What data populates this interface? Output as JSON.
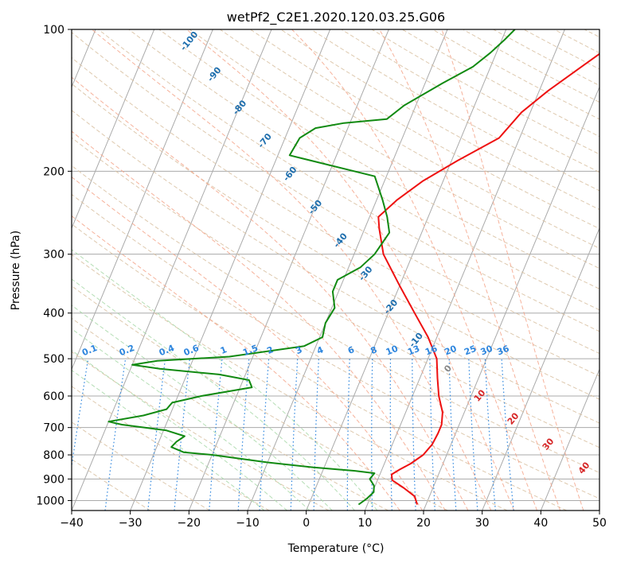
{
  "chart_data": {
    "type": "skew-t",
    "title": "wetPf2_C2E1.2020.120.03.25.G06",
    "xlabel": "Temperature (°C)",
    "ylabel": "Pressure (hPa)",
    "xlim": [
      -40,
      50
    ],
    "ylim": [
      1050,
      100
    ],
    "y_scale": "log",
    "x_ticks": [
      "−40",
      "−30",
      "−20",
      "−10",
      "0",
      "10",
      "20",
      "30",
      "40",
      "50"
    ],
    "y_ticks": [
      "100",
      "200",
      "300",
      "400",
      "500",
      "600",
      "700",
      "800",
      "900",
      "1000"
    ],
    "grid": true,
    "colors": {
      "temperature": "#ee1111",
      "dewpoint": "#118a11",
      "isotherm": "#aaaaaa",
      "dry_adiabat": "#d8bfa0",
      "moist_adiabat": "#f5a58a",
      "moist_adiabat_inner": "#a8d8a8",
      "mixing_ratio": "#2e86de",
      "dry_adiabat_label": "#1f6fae",
      "moist_label": "#d62728",
      "zero_label": "#888888"
    },
    "series": [
      {
        "role": "temperature",
        "points": [
          {
            "p": 1020,
            "t": 18.5
          },
          {
            "p": 980,
            "t": 17.5
          },
          {
            "p": 940,
            "t": 15.0
          },
          {
            "p": 905,
            "t": 12.5
          },
          {
            "p": 880,
            "t": 12.0
          },
          {
            "p": 860,
            "t": 13.0
          },
          {
            "p": 835,
            "t": 14.5
          },
          {
            "p": 800,
            "t": 16.0
          },
          {
            "p": 760,
            "t": 16.8
          },
          {
            "p": 720,
            "t": 17.0
          },
          {
            "p": 690,
            "t": 17.0
          },
          {
            "p": 650,
            "t": 16.3
          },
          {
            "p": 600,
            "t": 14.5
          },
          {
            "p": 550,
            "t": 13.0
          },
          {
            "p": 500,
            "t": 11.5
          },
          {
            "p": 450,
            "t": 8.5
          },
          {
            "p": 400,
            "t": 4.5
          },
          {
            "p": 350,
            "t": 0.0
          },
          {
            "p": 300,
            "t": -5.0
          },
          {
            "p": 265,
            "t": -7.5
          },
          {
            "p": 250,
            "t": -8.5
          },
          {
            "p": 230,
            "t": -6.5
          },
          {
            "p": 210,
            "t": -3.5
          },
          {
            "p": 190,
            "t": 1.0
          },
          {
            "p": 170,
            "t": 6.5
          },
          {
            "p": 150,
            "t": 8.5
          },
          {
            "p": 135,
            "t": 11.5
          },
          {
            "p": 120,
            "t": 15.5
          },
          {
            "p": 110,
            "t": 18.5
          },
          {
            "p": 100,
            "t": 20.5
          }
        ]
      },
      {
        "role": "dewpoint",
        "points": [
          {
            "p": 1020,
            "t": 8.5
          },
          {
            "p": 990,
            "t": 9.5
          },
          {
            "p": 960,
            "t": 10.2
          },
          {
            "p": 930,
            "t": 9.8
          },
          {
            "p": 900,
            "t": 8.6
          },
          {
            "p": 875,
            "t": 9.0
          },
          {
            "p": 865,
            "t": 5.5
          },
          {
            "p": 850,
            "t": -2.0
          },
          {
            "p": 830,
            "t": -10.0
          },
          {
            "p": 800,
            "t": -20.0
          },
          {
            "p": 790,
            "t": -25.0
          },
          {
            "p": 770,
            "t": -27.5
          },
          {
            "p": 750,
            "t": -27.0
          },
          {
            "p": 730,
            "t": -26.0
          },
          {
            "p": 710,
            "t": -29.5
          },
          {
            "p": 690,
            "t": -37.5
          },
          {
            "p": 680,
            "t": -40.0
          },
          {
            "p": 660,
            "t": -34.5
          },
          {
            "p": 640,
            "t": -31.0
          },
          {
            "p": 620,
            "t": -30.5
          },
          {
            "p": 600,
            "t": -26.0
          },
          {
            "p": 575,
            "t": -18.0
          },
          {
            "p": 555,
            "t": -19.0
          },
          {
            "p": 540,
            "t": -24.5
          },
          {
            "p": 525,
            "t": -35.0
          },
          {
            "p": 515,
            "t": -40.0
          },
          {
            "p": 505,
            "t": -36.0
          },
          {
            "p": 495,
            "t": -24.0
          },
          {
            "p": 470,
            "t": -12.0
          },
          {
            "p": 450,
            "t": -9.5
          },
          {
            "p": 420,
            "t": -10.0
          },
          {
            "p": 390,
            "t": -9.5
          },
          {
            "p": 360,
            "t": -11.0
          },
          {
            "p": 340,
            "t": -11.0
          },
          {
            "p": 320,
            "t": -8.0
          },
          {
            "p": 300,
            "t": -6.5
          },
          {
            "p": 270,
            "t": -5.5
          },
          {
            "p": 250,
            "t": -7.0
          },
          {
            "p": 230,
            "t": -9.0
          },
          {
            "p": 205,
            "t": -12.0
          },
          {
            "p": 185,
            "t": -28.0
          },
          {
            "p": 170,
            "t": -27.5
          },
          {
            "p": 162,
            "t": -25.5
          },
          {
            "p": 158,
            "t": -21.0
          },
          {
            "p": 155,
            "t": -14.0
          },
          {
            "p": 145,
            "t": -12.0
          },
          {
            "p": 130,
            "t": -7.0
          },
          {
            "p": 120,
            "t": -3.0
          },
          {
            "p": 112,
            "t": -1.0
          },
          {
            "p": 105,
            "t": 0.5
          },
          {
            "p": 100,
            "t": 1.5
          }
        ]
      }
    ],
    "dry_adiabat_labels": [
      "-100",
      "-90",
      "-80",
      "-70",
      "-60",
      "-50",
      "-40",
      "-30",
      "-20",
      "-10"
    ],
    "mixing_ratio_labels": [
      "0.1",
      "0.2",
      "0.4",
      "0.6",
      "1",
      "1.5",
      "2",
      "3",
      "4",
      "6",
      "8",
      "10",
      "13",
      "16",
      "20",
      "25",
      "30",
      "36"
    ],
    "moist_adiabat_labels": [
      "0",
      "10",
      "20",
      "30",
      "40"
    ]
  }
}
